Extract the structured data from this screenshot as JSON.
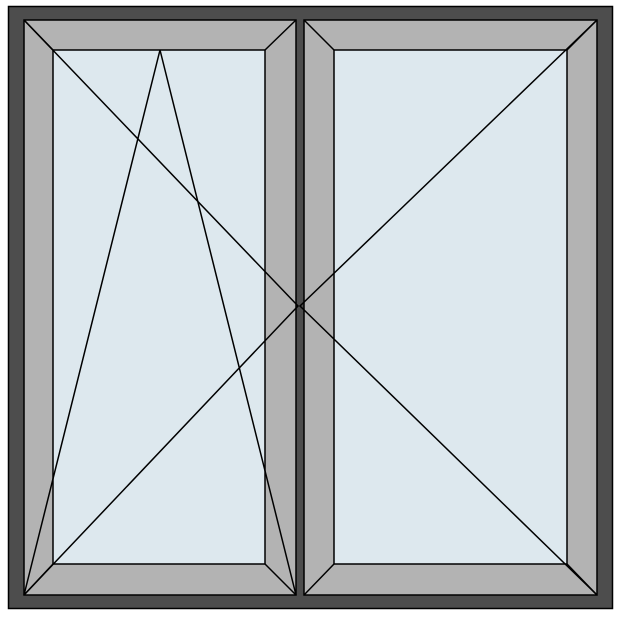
{
  "diagram": {
    "type": "window-elevation",
    "sashes": [
      {
        "position": "left",
        "opening": "tilt-and-turn"
      },
      {
        "position": "right",
        "opening": "turn"
      }
    ]
  },
  "colors": {
    "outer_frame": "#4d4d4d",
    "sash_profile": "#b3b3b3",
    "glass": "#dde8ee",
    "lines": "#000000",
    "background": "#ffffff"
  }
}
